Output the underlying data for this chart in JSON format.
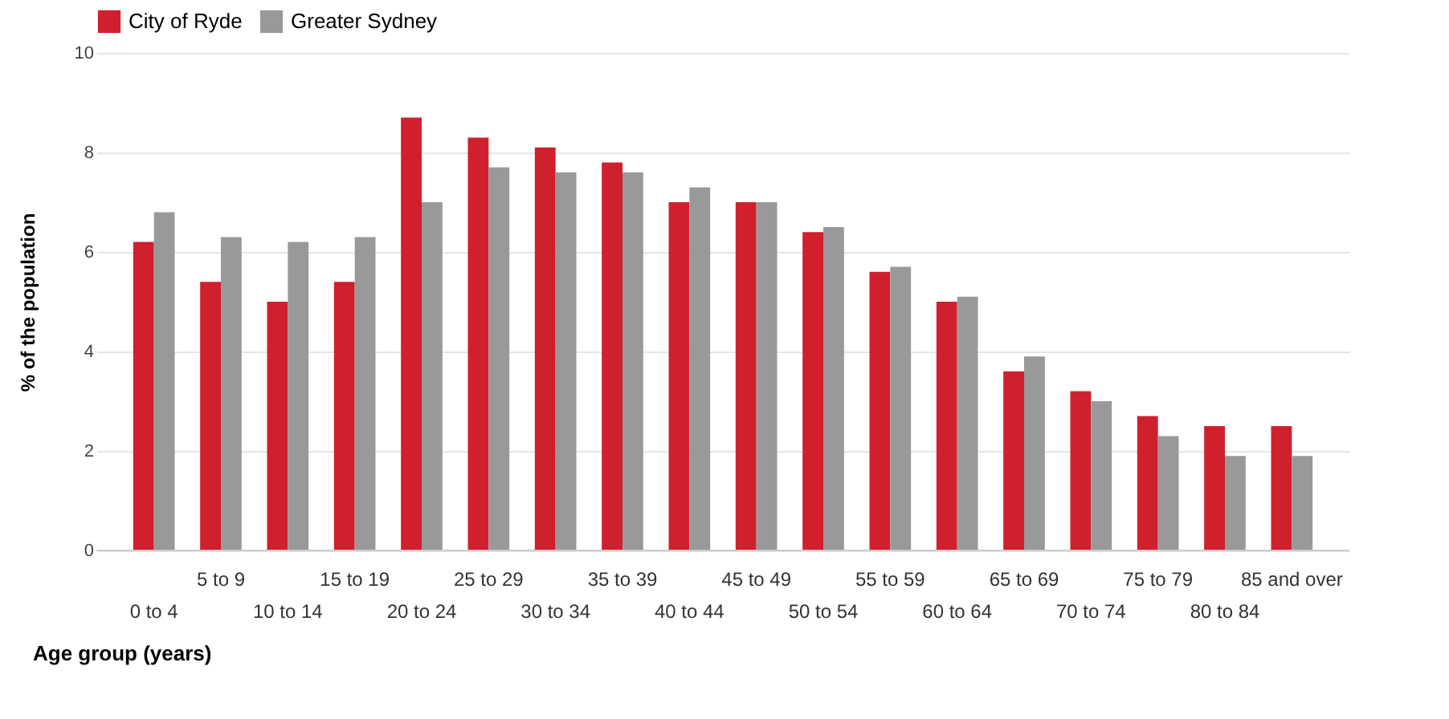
{
  "chart_data": {
    "type": "bar",
    "xlabel": "Age group (years)",
    "ylabel": "% of the population",
    "categories": [
      "0 to 4",
      "5 to 9",
      "10 to 14",
      "15 to 19",
      "20 to 24",
      "25 to 29",
      "30 to 34",
      "35 to 39",
      "40 to 44",
      "45 to 49",
      "50 to 54",
      "55 to 59",
      "60 to 64",
      "65 to 69",
      "70 to 74",
      "75 to 79",
      "80 to 84",
      "85 and over"
    ],
    "series": [
      {
        "name": "City of Ryde",
        "color": "#d0202e",
        "values": [
          6.2,
          5.4,
          5.0,
          5.4,
          8.7,
          8.3,
          8.1,
          7.8,
          7.0,
          7.0,
          6.4,
          5.6,
          5.0,
          3.6,
          3.2,
          2.7,
          2.5,
          2.5
        ]
      },
      {
        "name": "Greater Sydney",
        "color": "#999999",
        "values": [
          6.8,
          6.3,
          6.2,
          6.3,
          7.0,
          7.7,
          7.6,
          7.6,
          7.3,
          7.0,
          6.5,
          5.7,
          5.1,
          3.9,
          3.0,
          2.3,
          1.9,
          1.9
        ]
      }
    ],
    "ylim": [
      0,
      10
    ],
    "yticks": [
      0,
      2,
      4,
      6,
      8,
      10
    ],
    "grid": "y",
    "legend": "top left"
  }
}
